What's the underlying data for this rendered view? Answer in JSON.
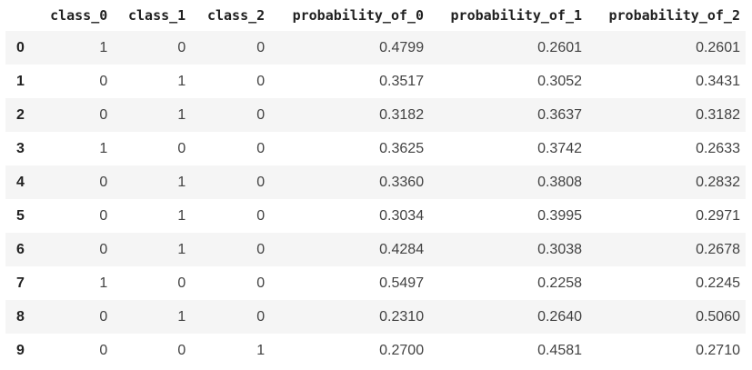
{
  "table": {
    "index_header": "",
    "columns": [
      "class_0",
      "class_1",
      "class_2",
      "probability_of_0",
      "probability_of_1",
      "probability_of_2"
    ],
    "rows": [
      {
        "index": "0",
        "cells": [
          "1",
          "0",
          "0",
          "0.4799",
          "0.2601",
          "0.2601"
        ]
      },
      {
        "index": "1",
        "cells": [
          "0",
          "1",
          "0",
          "0.3517",
          "0.3052",
          "0.3431"
        ]
      },
      {
        "index": "2",
        "cells": [
          "0",
          "1",
          "0",
          "0.3182",
          "0.3637",
          "0.3182"
        ]
      },
      {
        "index": "3",
        "cells": [
          "1",
          "0",
          "0",
          "0.3625",
          "0.3742",
          "0.2633"
        ]
      },
      {
        "index": "4",
        "cells": [
          "0",
          "1",
          "0",
          "0.3360",
          "0.3808",
          "0.2832"
        ]
      },
      {
        "index": "5",
        "cells": [
          "0",
          "1",
          "0",
          "0.3034",
          "0.3995",
          "0.2971"
        ]
      },
      {
        "index": "6",
        "cells": [
          "0",
          "1",
          "0",
          "0.4284",
          "0.3038",
          "0.2678"
        ]
      },
      {
        "index": "7",
        "cells": [
          "1",
          "0",
          "0",
          "0.5497",
          "0.2258",
          "0.2245"
        ]
      },
      {
        "index": "8",
        "cells": [
          "0",
          "1",
          "0",
          "0.2310",
          "0.2640",
          "0.5060"
        ]
      },
      {
        "index": "9",
        "cells": [
          "0",
          "0",
          "1",
          "0.2700",
          "0.4581",
          "0.2710"
        ]
      }
    ]
  }
}
